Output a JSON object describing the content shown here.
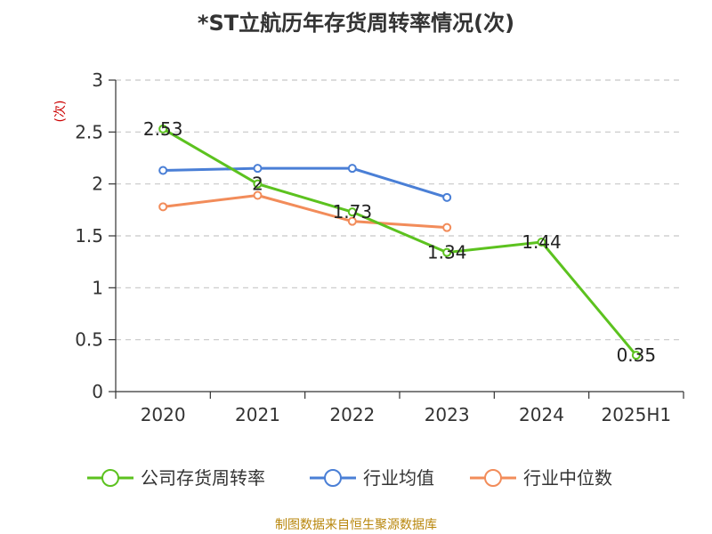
{
  "chart_data": {
    "type": "line",
    "title": "*ST立航历年存货周转率情况(次)",
    "ylabel": "(次)",
    "categories": [
      "2020",
      "2021",
      "2022",
      "2023",
      "2024",
      "2025H1"
    ],
    "ylim": [
      0,
      3
    ],
    "yticks": [
      "0",
      "0.5",
      "1",
      "1.5",
      "2",
      "2.5",
      "3"
    ],
    "grid": true,
    "legend_placement": "bottom",
    "series": [
      {
        "name": "公司存货周转率",
        "color": "#5cc21f",
        "values": [
          2.53,
          2.0,
          1.73,
          1.34,
          1.44,
          0.35
        ],
        "labels": [
          "2.53",
          "2",
          "1.73",
          "1.34",
          "1.44",
          "0.35"
        ]
      },
      {
        "name": "行业均值",
        "color": "#4a7fd6",
        "values": [
          2.13,
          2.15,
          2.15,
          1.87,
          null,
          null
        ]
      },
      {
        "name": "行业中位数",
        "color": "#f28c5a",
        "values": [
          1.78,
          1.89,
          1.64,
          1.58,
          null,
          null
        ]
      }
    ],
    "source": "制图数据来自恒生聚源数据库"
  }
}
